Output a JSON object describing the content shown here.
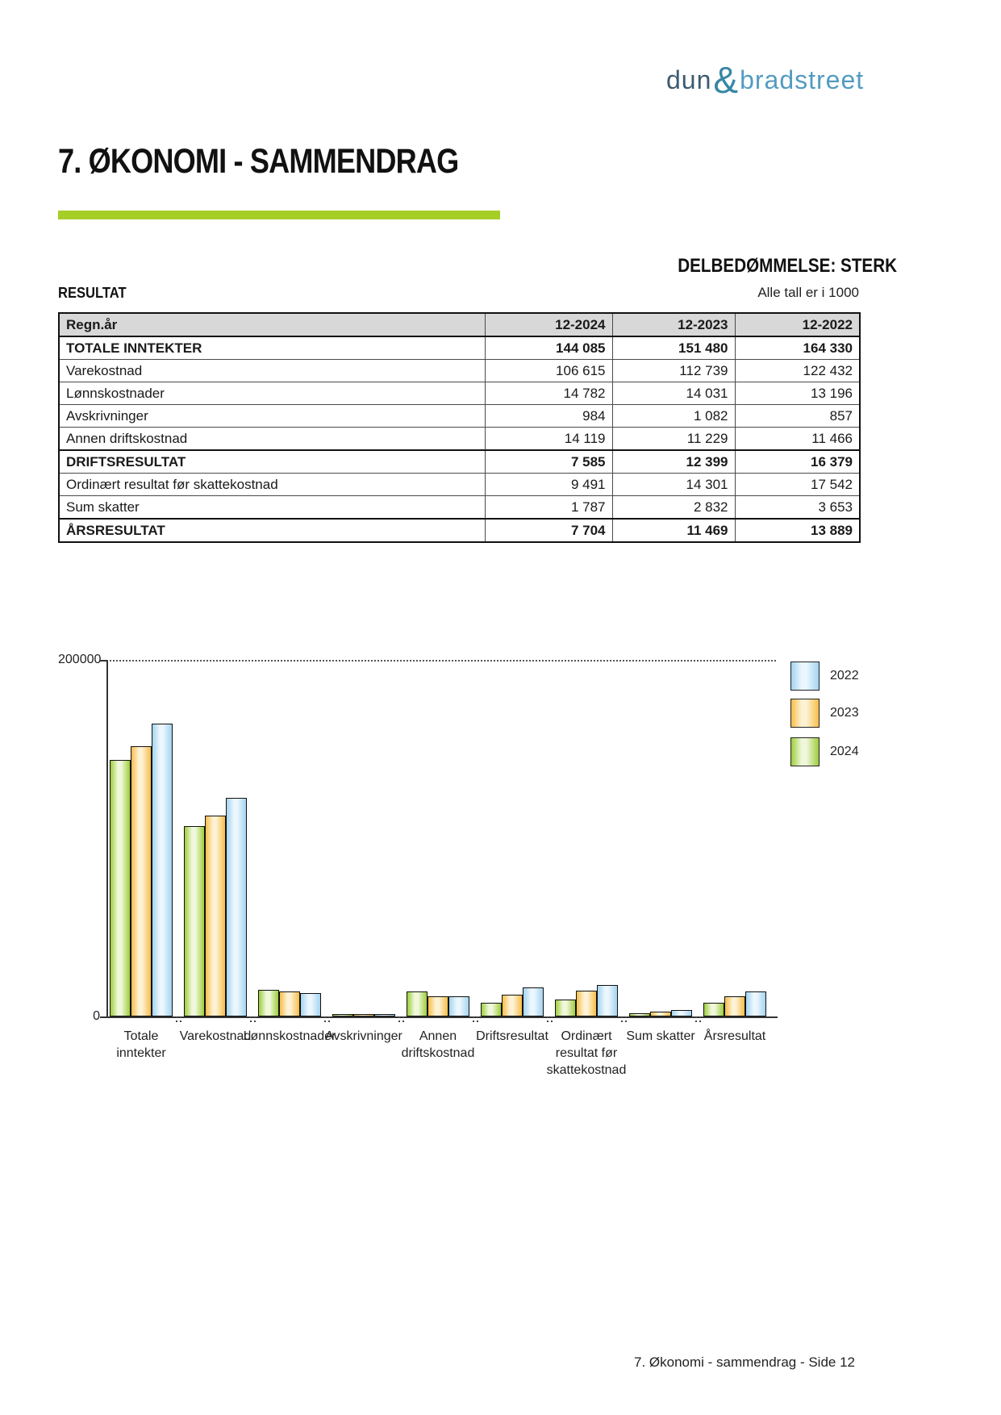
{
  "logo": {
    "dun": "dun",
    "amp": "&",
    "bradstreet": "bradstreet"
  },
  "page": {
    "title": "7. ØKONOMI - SAMMENDRAG",
    "assessment": "DELBEDØMMELSE: STERK",
    "section_label": "RESULTAT",
    "units_note": "Alle tall er i 1000",
    "footer": "7. Økonomi - sammendrag - Side 12"
  },
  "table": {
    "header": [
      "Regn.år",
      "12-2024",
      "12-2023",
      "12-2022"
    ],
    "rows": [
      {
        "label": "TOTALE INNTEKTER",
        "values": [
          "144 085",
          "151 480",
          "164 330"
        ],
        "bold": true
      },
      {
        "label": "Varekostnad",
        "values": [
          "106 615",
          "112 739",
          "122 432"
        ],
        "bold": false
      },
      {
        "label": "Lønnskostnader",
        "values": [
          "14 782",
          "14 031",
          "13 196"
        ],
        "bold": false
      },
      {
        "label": "Avskrivninger",
        "values": [
          "984",
          "1 082",
          "857"
        ],
        "bold": false
      },
      {
        "label": "Annen driftskostnad",
        "values": [
          "14 119",
          "11 229",
          "11 466"
        ],
        "bold": false
      },
      {
        "label": "DRIFTSRESULTAT",
        "values": [
          "7 585",
          "12 399",
          "16 379"
        ],
        "bold": true
      },
      {
        "label": "Ordinært resultat før skattekostnad",
        "values": [
          "9 491",
          "14 301",
          "17 542"
        ],
        "bold": false
      },
      {
        "label": "Sum skatter",
        "values": [
          "1 787",
          "2 832",
          "3 653"
        ],
        "bold": false
      },
      {
        "label": "ÅRSRESULTAT",
        "values": [
          "7 704",
          "11 469",
          "13 889"
        ],
        "bold": true
      }
    ]
  },
  "chart_data": {
    "type": "bar",
    "title": "",
    "categories": [
      "Totale inntekter",
      "Varekostnad",
      "Lønnskostnader",
      "Avskrivninger",
      "Annen driftskostnad",
      "Driftsresultat",
      "Ordinært resultat før skattekostnad",
      "Sum skatter",
      "Årsresultat"
    ],
    "category_label_lines": [
      [
        "Totale",
        "inntekter"
      ],
      [
        "Varekostnad"
      ],
      [
        "Lønnskostnader"
      ],
      [
        "Avskrivninger"
      ],
      [
        "Annen",
        "driftskostnad"
      ],
      [
        "Driftsresultat"
      ],
      [
        "Ordinært",
        "resultat før",
        "skattekostnad"
      ],
      [
        "Sum skatter"
      ],
      [
        "Årsresultat"
      ]
    ],
    "series": [
      {
        "name": "2024",
        "color": "#9ecd3b",
        "highlight": "#f0f8dc",
        "values": [
          144085,
          106615,
          14782,
          984,
          14119,
          7585,
          9491,
          1787,
          7704
        ]
      },
      {
        "name": "2023",
        "color": "#f7bd49",
        "highlight": "#fdf2d4",
        "values": [
          151480,
          112739,
          14031,
          1082,
          11229,
          12399,
          14301,
          2832,
          11469
        ]
      },
      {
        "name": "2022",
        "color": "#a3d4f0",
        "highlight": "#ebf6fd",
        "values": [
          164330,
          122432,
          13196,
          857,
          11466,
          16379,
          17542,
          3653,
          13889
        ]
      }
    ],
    "bar_order": [
      "2024",
      "2023",
      "2022"
    ],
    "legend_order": [
      "2022",
      "2023",
      "2024"
    ],
    "ylim": [
      0,
      200000
    ],
    "ytick_labels": [
      "200000",
      "0"
    ],
    "legend_position": "top-right",
    "grid": "single dotted gridline at y = 200000"
  }
}
